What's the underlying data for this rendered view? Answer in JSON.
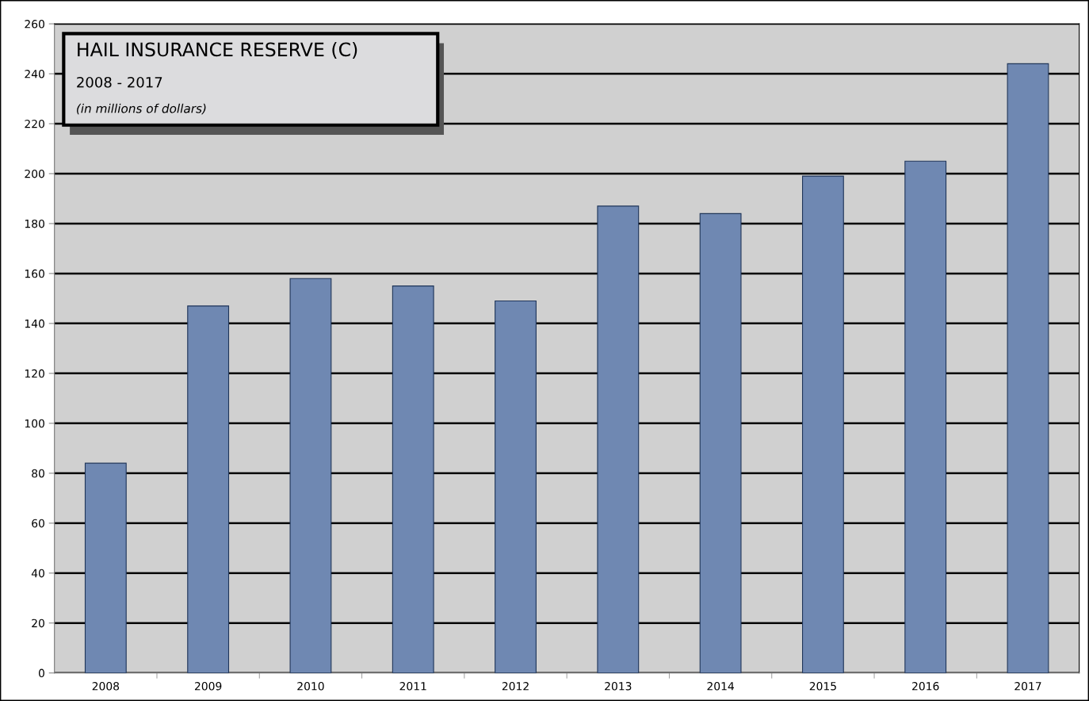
{
  "chart_data": {
    "type": "bar",
    "title": "HAIL INSURANCE RESERVE (C)",
    "subtitle": "2008 - 2017",
    "annotations": [
      "(in millions of dollars)"
    ],
    "categories": [
      "2008",
      "2009",
      "2010",
      "2011",
      "2012",
      "2013",
      "2014",
      "2015",
      "2016",
      "2017"
    ],
    "values": [
      84,
      147,
      158,
      155,
      149,
      187,
      184,
      199,
      205,
      244
    ],
    "color": "#6f88b2",
    "ylim": [
      0,
      260
    ],
    "yticks": [
      0,
      20,
      40,
      60,
      80,
      100,
      120,
      140,
      160,
      180,
      200,
      220,
      240,
      260
    ],
    "grid": "y",
    "legend": false
  }
}
